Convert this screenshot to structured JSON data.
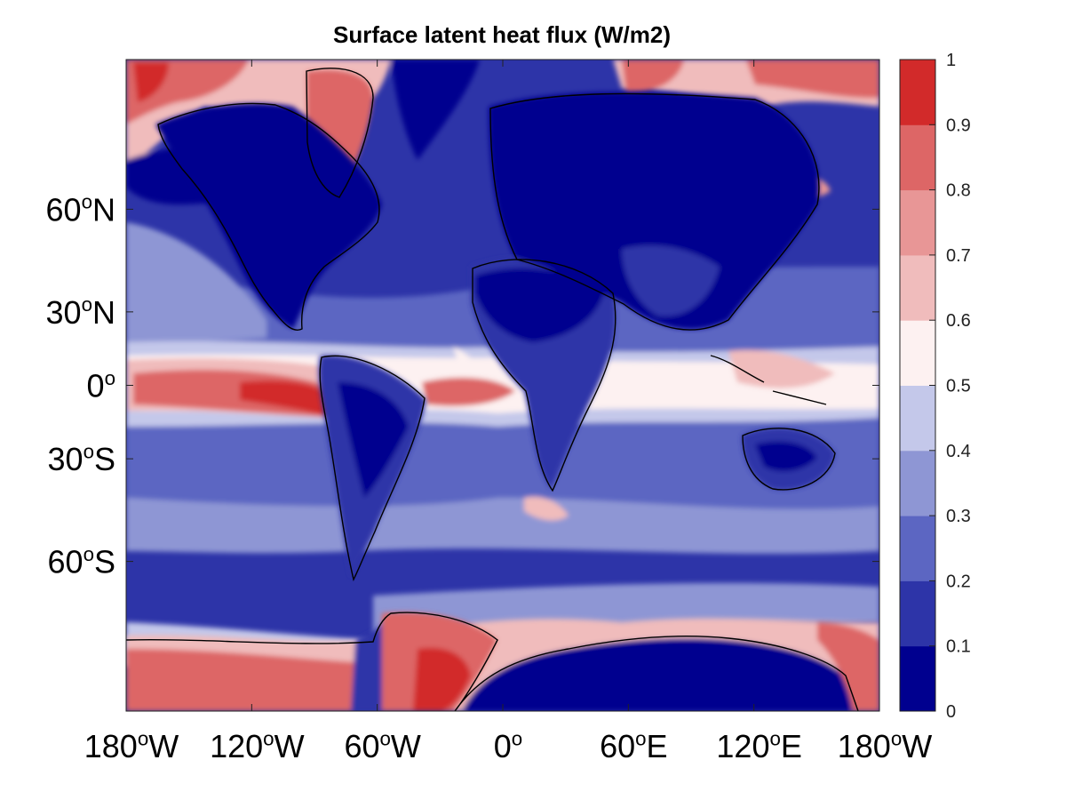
{
  "title": "Surface latent heat flux (W/m2)",
  "map": {
    "projection": "mercator",
    "lon_range": [
      -180,
      180
    ],
    "lat_range": [
      -80,
      80
    ],
    "x_ticks": [
      {
        "lon": -180,
        "num": "180",
        "hemi": "W"
      },
      {
        "lon": -120,
        "num": "120",
        "hemi": "W"
      },
      {
        "lon": -60,
        "num": "60",
        "hemi": "W"
      },
      {
        "lon": 0,
        "num": "0",
        "hemi": ""
      },
      {
        "lon": 60,
        "num": "60",
        "hemi": "E"
      },
      {
        "lon": 120,
        "num": "120",
        "hemi": "E"
      },
      {
        "lon": 180,
        "num": "180",
        "hemi": "W"
      }
    ],
    "y_ticks": [
      {
        "lat": 60,
        "num": "60",
        "hemi": "N"
      },
      {
        "lat": 30,
        "num": "30",
        "hemi": "N"
      },
      {
        "lat": 0,
        "num": "0",
        "hemi": ""
      },
      {
        "lat": -30,
        "num": "30",
        "hemi": "S"
      },
      {
        "lat": -60,
        "num": "60",
        "hemi": "S"
      }
    ],
    "degree_symbol": "o"
  },
  "colorbar": {
    "ticks": [
      "0",
      "0.1",
      "0.2",
      "0.3",
      "0.4",
      "0.5",
      "0.6",
      "0.7",
      "0.8",
      "0.9",
      "1"
    ],
    "colors": [
      "#00008f",
      "#2d34a8",
      "#5c66c2",
      "#8e96d4",
      "#c4c8ea",
      "#fdf1f1",
      "#f0bcbc",
      "#e89696",
      "#dd6666",
      "#d22a2a"
    ]
  },
  "colors": {
    "background_blue": "#2d34a8",
    "coast": "#000000"
  }
}
